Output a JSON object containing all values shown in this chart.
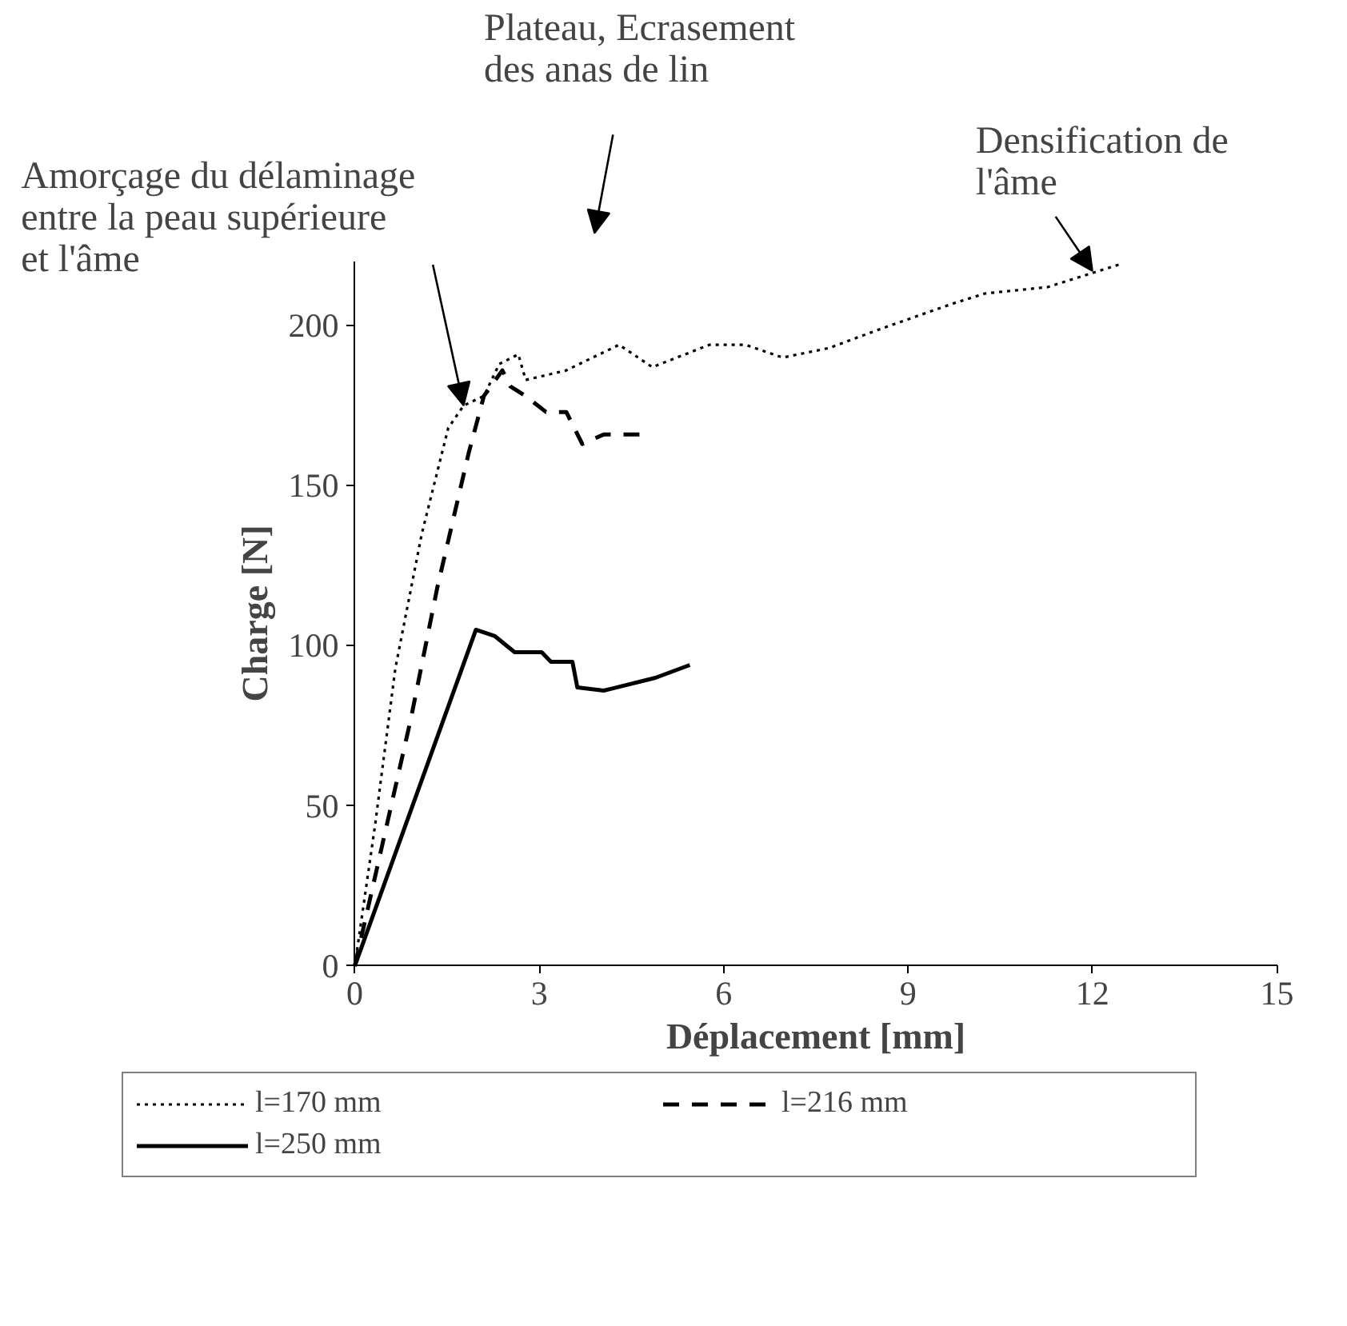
{
  "chart_data": {
    "type": "line",
    "xlabel": "Déplacement [mm]",
    "ylabel": "Charge [N]",
    "xlim": [
      0,
      15
    ],
    "xticks": [
      0,
      3,
      6,
      9,
      12,
      15
    ],
    "ylim": [
      0,
      220
    ],
    "yticks": [
      0,
      50,
      100,
      150,
      200
    ],
    "grid": false,
    "legend": "bottom",
    "marker": "none",
    "annotations": [
      {
        "text": "Amorçage du délaminage\nentre la peau supérieure\net l'âme",
        "x": 1.77,
        "y": 175
      },
      "Plateau, Ecrasement\ndes anas de lin",
      {
        "text": "Densification de\nl'âme",
        "x": 12.0,
        "y": 217
      }
    ],
    "series": [
      {
        "name": "l=170 mm",
        "color": "#000000",
        "line_style": "dotted",
        "x": [
          0,
          0.33,
          0.66,
          1.09,
          1.52,
          1.77,
          2.1,
          2.35,
          2.66,
          2.78,
          3.44,
          4.3,
          4.84,
          5.77,
          6.35,
          6.96,
          7.72,
          8.56,
          9.75,
          10.25,
          11.27,
          12.43
        ],
        "values": [
          0,
          44,
          93,
          135,
          168,
          175,
          178,
          188,
          191,
          183,
          186,
          194,
          187,
          194,
          194,
          190,
          193,
          199,
          207,
          210,
          212,
          219
        ]
      },
      {
        "name": "l=216 mm",
        "color": "#000000",
        "line_style": "dashed",
        "x": [
          0,
          0.91,
          1.34,
          1.85,
          2.1,
          2.4,
          2.53,
          2.78,
          3.11,
          3.44,
          3.7,
          4.05,
          4.63
        ],
        "values": [
          0,
          77,
          118,
          160,
          178,
          186,
          181,
          178,
          173,
          173,
          163,
          166,
          166
        ]
      },
      {
        "name": "l=250 mm",
        "color": "#000000",
        "line_style": "solid",
        "x": [
          0,
          1.97,
          2.28,
          2.6,
          3.04,
          3.19,
          3.54,
          3.62,
          4.05,
          4.89,
          5.45
        ],
        "values": [
          0,
          105,
          103,
          98,
          98,
          95,
          95,
          87,
          86,
          90,
          94
        ]
      }
    ]
  }
}
